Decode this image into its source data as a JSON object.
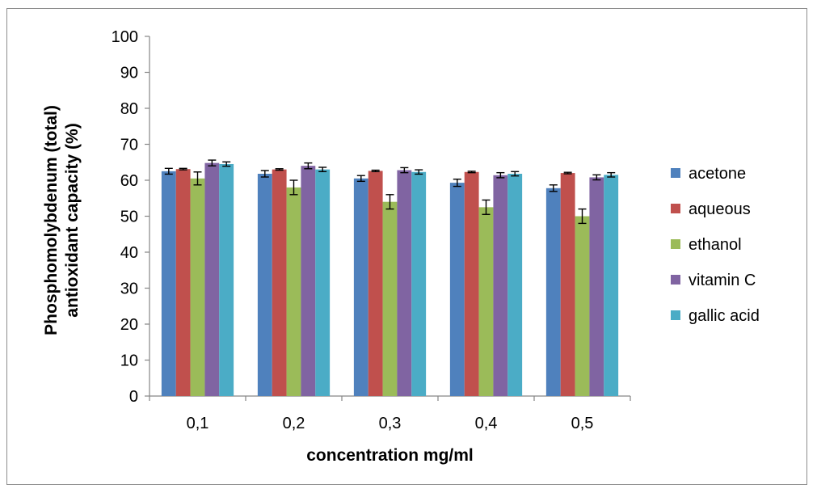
{
  "chart_data": {
    "type": "bar",
    "categories": [
      "0,1",
      "0,2",
      "0,3",
      "0,4",
      "0,5"
    ],
    "series": [
      {
        "name": "acetone",
        "color": "#4F81BD",
        "values": [
          62.5,
          61.8,
          60.5,
          59.3,
          57.8
        ],
        "errors": [
          0.8,
          0.9,
          0.8,
          1.0,
          0.9
        ]
      },
      {
        "name": "aqueous",
        "color": "#C0504D",
        "values": [
          63.1,
          63.0,
          62.6,
          62.3,
          62.0
        ],
        "errors": [
          0.2,
          0.2,
          0.2,
          0.2,
          0.2
        ]
      },
      {
        "name": "ethanol",
        "color": "#9BBB59",
        "values": [
          60.5,
          58.0,
          54.0,
          52.5,
          50.0
        ],
        "errors": [
          1.8,
          2.0,
          2.0,
          2.0,
          2.0
        ]
      },
      {
        "name": "vitamin C",
        "color": "#8064A2",
        "values": [
          64.8,
          64.0,
          62.8,
          61.4,
          60.8
        ],
        "errors": [
          0.8,
          0.8,
          0.7,
          0.7,
          0.7
        ]
      },
      {
        "name": "gallic acid",
        "color": "#4BACC6",
        "values": [
          64.5,
          63.0,
          62.3,
          61.8,
          61.5
        ],
        "errors": [
          0.6,
          0.6,
          0.6,
          0.6,
          0.6
        ]
      }
    ],
    "xlabel": "concentration mg/ml",
    "ylabel_lines": [
      "Phosphomolybdenum (total)",
      "antioxidant capacity (%)"
    ],
    "ylim": [
      0,
      100
    ],
    "yticks": [
      0,
      10,
      20,
      30,
      40,
      50,
      60,
      70,
      80,
      90,
      100
    ],
    "legend_position": "right",
    "grid": false
  }
}
